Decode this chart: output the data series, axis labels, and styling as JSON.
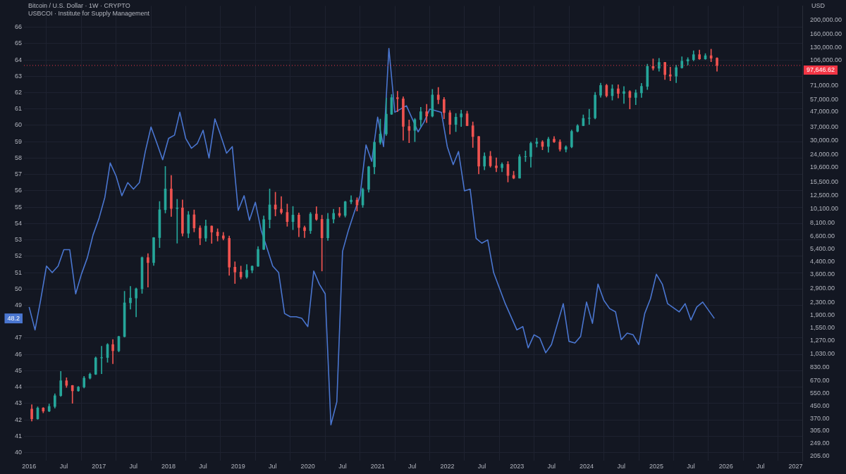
{
  "chart_data": {
    "type": "candlestick",
    "title": "Bitcoin / U.S. Dollar · 1W · CRYPTO",
    "subtitle": "USBCOI · Institute for Supply Management",
    "y2label": "USD",
    "log": "y2",
    "grid": true,
    "xlim": [
      "2015-12-05",
      "2027-02-05"
    ],
    "xticks": [
      {
        "value": "2016-01-01",
        "label": "2016"
      },
      {
        "value": "2016-07-01",
        "label": "Jul"
      },
      {
        "value": "2017-01-01",
        "label": "2017"
      },
      {
        "value": "2017-07-01",
        "label": "Jul"
      },
      {
        "value": "2018-01-01",
        "label": "2018"
      },
      {
        "value": "2018-07-01",
        "label": "Jul"
      },
      {
        "value": "2019-01-01",
        "label": "2019"
      },
      {
        "value": "2019-07-01",
        "label": "Jul"
      },
      {
        "value": "2020-01-01",
        "label": "2020"
      },
      {
        "value": "2020-07-01",
        "label": "Jul"
      },
      {
        "value": "2021-01-01",
        "label": "2021"
      },
      {
        "value": "2021-07-01",
        "label": "Jul"
      },
      {
        "value": "2022-01-01",
        "label": "2022"
      },
      {
        "value": "2022-07-01",
        "label": "Jul"
      },
      {
        "value": "2023-01-01",
        "label": "2023"
      },
      {
        "value": "2023-07-01",
        "label": "Jul"
      },
      {
        "value": "2024-01-01",
        "label": "2024"
      },
      {
        "value": "2024-07-01",
        "label": "Jul"
      },
      {
        "value": "2025-01-01",
        "label": "2025"
      },
      {
        "value": "2025-07-01",
        "label": "Jul"
      },
      {
        "value": "2026-01-01",
        "label": "2026"
      },
      {
        "value": "2026-07-01",
        "label": "Jul"
      },
      {
        "value": "2027-01-01",
        "label": "2027"
      }
    ],
    "ylim": [
      39.5,
      67.3
    ],
    "yticks": [
      40,
      41,
      42,
      43,
      44,
      45,
      46,
      47,
      49,
      50,
      51,
      52,
      53,
      54,
      55,
      56,
      57,
      58,
      59,
      60,
      61,
      62,
      63,
      64,
      65,
      66
    ],
    "y2lim": [
      190,
      250000
    ],
    "y2ticks": [
      {
        "value": 205,
        "label": "205.00"
      },
      {
        "value": 249,
        "label": "249.00"
      },
      {
        "value": 305,
        "label": "305.00"
      },
      {
        "value": 370,
        "label": "370.00"
      },
      {
        "value": 450,
        "label": "450.00"
      },
      {
        "value": 550,
        "label": "550.00"
      },
      {
        "value": 670,
        "label": "670.00"
      },
      {
        "value": 830,
        "label": "830.00"
      },
      {
        "value": 1030,
        "label": "1,030.00"
      },
      {
        "value": 1270,
        "label": "1,270.00"
      },
      {
        "value": 1550,
        "label": "1,550.00"
      },
      {
        "value": 1900,
        "label": "1,900.00"
      },
      {
        "value": 2300,
        "label": "2,300.00"
      },
      {
        "value": 2900,
        "label": "2,900.00"
      },
      {
        "value": 3600,
        "label": "3,600.00"
      },
      {
        "value": 4400,
        "label": "4,400.00"
      },
      {
        "value": 5400,
        "label": "5,400.00"
      },
      {
        "value": 6600,
        "label": "6,600.00"
      },
      {
        "value": 8100,
        "label": "8,100.00"
      },
      {
        "value": 10100,
        "label": "10,100.00"
      },
      {
        "value": 12500,
        "label": "12,500.00"
      },
      {
        "value": 15500,
        "label": "15,500.00"
      },
      {
        "value": 19600,
        "label": "19,600.00"
      },
      {
        "value": 24000,
        "label": "24,000.00"
      },
      {
        "value": 30000,
        "label": "30,000.00"
      },
      {
        "value": 37000,
        "label": "37,000.00"
      },
      {
        "value": 47000,
        "label": "47,000.00"
      },
      {
        "value": 57000,
        "label": "57,000.00"
      },
      {
        "value": 71000,
        "label": "71,000.00"
      },
      {
        "value": 106000,
        "label": "106,000.00"
      },
      {
        "value": 130000,
        "label": "130,000.00"
      },
      {
        "value": 160000,
        "label": "160,000.00"
      },
      {
        "value": 200000,
        "label": "200,000.00"
      }
    ],
    "ref_lines": [
      {
        "axis": "y2",
        "value": 97646.62,
        "label": "97,646.62",
        "color": "#f23645",
        "line_style": "dotted"
      }
    ],
    "annotations": [
      "48.2"
    ],
    "series": [
      {
        "type": "line",
        "color": "#4a76d0",
        "x": [
          "2016-01",
          "2016-02",
          "2016-03",
          "2016-04",
          "2016-05",
          "2016-06",
          "2016-07",
          "2016-08",
          "2016-09",
          "2016-10",
          "2016-11",
          "2016-12",
          "2017-01",
          "2017-02",
          "2017-03",
          "2017-04",
          "2017-05",
          "2017-06",
          "2017-07",
          "2017-08",
          "2017-09",
          "2017-10",
          "2017-11",
          "2017-12",
          "2018-01",
          "2018-02",
          "2018-03",
          "2018-04",
          "2018-05",
          "2018-06",
          "2018-07",
          "2018-08",
          "2018-09",
          "2018-10",
          "2018-11",
          "2018-12",
          "2019-01",
          "2019-02",
          "2019-03",
          "2019-04",
          "2019-05",
          "2019-06",
          "2019-07",
          "2019-08",
          "2019-09",
          "2019-10",
          "2019-11",
          "2019-12",
          "2020-01",
          "2020-02",
          "2020-03",
          "2020-04",
          "2020-05",
          "2020-06",
          "2020-07",
          "2020-08",
          "2020-09",
          "2020-10",
          "2020-11",
          "2020-12",
          "2021-01",
          "2021-02",
          "2021-03",
          "2021-04",
          "2021-06",
          "2021-08",
          "2021-09",
          "2021-10",
          "2021-12",
          "2022-01",
          "2022-02",
          "2022-03",
          "2022-04",
          "2022-05",
          "2022-06",
          "2022-07",
          "2022-08",
          "2022-09",
          "2022-11",
          "2023-01",
          "2023-02",
          "2023-03",
          "2023-04",
          "2023-05",
          "2023-06",
          "2023-07",
          "2023-09",
          "2023-10",
          "2023-11",
          "2023-12",
          "2024-01",
          "2024-02",
          "2024-03",
          "2024-04",
          "2024-05",
          "2024-06",
          "2024-07",
          "2024-08",
          "2024-09",
          "2024-10",
          "2024-11",
          "2024-12",
          "2025-01",
          "2025-02",
          "2025-03",
          "2025-05",
          "2025-06",
          "2025-07",
          "2025-08",
          "2025-09",
          "2025-11"
        ],
        "values": [
          48.9,
          47.5,
          49.3,
          51.4,
          51.0,
          51.4,
          52.4,
          52.4,
          49.7,
          50.9,
          51.9,
          53.3,
          54.3,
          55.6,
          57.7,
          56.9,
          55.7,
          56.5,
          56.1,
          56.5,
          58.4,
          59.9,
          58.9,
          57.9,
          59.2,
          59.4,
          60.8,
          59.2,
          58.6,
          58.9,
          59.7,
          58.0,
          60.4,
          59.4,
          58.3,
          58.7,
          54.8,
          55.7,
          54.2,
          55.3,
          53.6,
          52.5,
          51.4,
          51.0,
          48.5,
          48.3,
          48.3,
          48.2,
          47.7,
          51.1,
          50.3,
          49.7,
          41.7,
          43.1,
          52.3,
          53.6,
          54.7,
          55.7,
          58.8,
          57.8,
          60.5,
          58.7,
          64.7,
          60.8,
          61.2,
          59.6,
          60.2,
          61.0,
          60.8,
          58.7,
          57.6,
          58.4,
          56.0,
          56.1,
          53.1,
          52.8,
          53.0,
          51.0,
          49.1,
          47.5,
          47.7,
          46.4,
          47.2,
          47.0,
          46.1,
          46.6,
          49.1,
          46.8,
          46.7,
          47.1,
          49.2,
          47.9,
          50.3,
          49.3,
          48.8,
          48.6,
          46.9,
          47.3,
          47.2,
          46.6,
          48.5,
          49.4,
          50.9,
          50.3,
          49.1,
          48.6,
          49.1,
          48.1,
          48.9,
          49.2,
          48.2
        ]
      },
      {
        "axis": "y2",
        "x": [
          "2016-01-15",
          "2016-02-15",
          "2016-03-15",
          "2016-04-15",
          "2016-05-15",
          "2016-06-15",
          "2016-07-15",
          "2016-08-15",
          "2016-09-15",
          "2016-10-15",
          "2016-11-15",
          "2016-12-15",
          "2017-01-15",
          "2017-02-15",
          "2017-03-15",
          "2017-04-15",
          "2017-05-15",
          "2017-06-15",
          "2017-07-15",
          "2017-08-15",
          "2017-09-15",
          "2017-10-15",
          "2017-11-15",
          "2017-12-15",
          "2018-01-15",
          "2018-02-15",
          "2018-03-15",
          "2018-04-15",
          "2018-05-15",
          "2018-06-15",
          "2018-07-15",
          "2018-08-15",
          "2018-09-15",
          "2018-10-15",
          "2018-11-15",
          "2018-12-15",
          "2019-01-15",
          "2019-02-15",
          "2019-03-15",
          "2019-04-15",
          "2019-05-15",
          "2019-06-15",
          "2019-07-15",
          "2019-08-15",
          "2019-09-15",
          "2019-10-15",
          "2019-11-15",
          "2019-12-15",
          "2020-01-15",
          "2020-02-15",
          "2020-03-15",
          "2020-04-15",
          "2020-05-15",
          "2020-06-15",
          "2020-07-15",
          "2020-08-15",
          "2020-09-15",
          "2020-10-15",
          "2020-11-15",
          "2020-12-15",
          "2021-01-15",
          "2021-02-15",
          "2021-03-15",
          "2021-04-15",
          "2021-05-15",
          "2021-06-15",
          "2021-07-15",
          "2021-08-15",
          "2021-09-15",
          "2021-10-15",
          "2021-11-15",
          "2021-12-15",
          "2022-01-15",
          "2022-02-15",
          "2022-03-15",
          "2022-04-15",
          "2022-05-15",
          "2022-06-15",
          "2022-07-15",
          "2022-08-15",
          "2022-09-15",
          "2022-10-15",
          "2022-11-15",
          "2022-12-15",
          "2023-01-15",
          "2023-02-15",
          "2023-03-15",
          "2023-04-15",
          "2023-05-15",
          "2023-06-15",
          "2023-07-15",
          "2023-08-15",
          "2023-09-15",
          "2023-10-15",
          "2023-11-15",
          "2023-12-15",
          "2024-01-15",
          "2024-02-15",
          "2024-03-15",
          "2024-04-15",
          "2024-05-15",
          "2024-06-15",
          "2024-07-15",
          "2024-08-15",
          "2024-09-15",
          "2024-10-15",
          "2024-11-15",
          "2024-12-15",
          "2025-01-15",
          "2025-02-15",
          "2025-03-15",
          "2025-04-15",
          "2025-05-15",
          "2025-06-15",
          "2025-07-15",
          "2025-08-15",
          "2025-09-15",
          "2025-10-15",
          "2025-11-15"
        ],
        "ohlc": [
          [
            430,
            460,
            355,
            368
          ],
          [
            368,
            445,
            365,
            437
          ],
          [
            437,
            440,
            405,
            416
          ],
          [
            416,
            466,
            412,
            448
          ],
          [
            448,
            548,
            436,
            531
          ],
          [
            531,
            780,
            525,
            673
          ],
          [
            673,
            705,
            605,
            624
          ],
          [
            624,
            625,
            470,
            573
          ],
          [
            573,
            615,
            568,
            609
          ],
          [
            609,
            720,
            600,
            700
          ],
          [
            700,
            760,
            690,
            745
          ],
          [
            745,
            980,
            740,
            964
          ],
          [
            964,
            1160,
            750,
            970
          ],
          [
            970,
            1210,
            900,
            1190
          ],
          [
            1190,
            1290,
            880,
            1080
          ],
          [
            1080,
            1360,
            1060,
            1350
          ],
          [
            1350,
            2760,
            1340,
            2300
          ],
          [
            2300,
            2980,
            2080,
            2480
          ],
          [
            2480,
            2910,
            1840,
            2870
          ],
          [
            2870,
            4750,
            2670,
            4700
          ],
          [
            4700,
            5000,
            2950,
            4340
          ],
          [
            4340,
            6470,
            4150,
            6440
          ],
          [
            6440,
            11400,
            5500,
            10000
          ],
          [
            10000,
            19800,
            9500,
            13900
          ],
          [
            13900,
            17200,
            9000,
            10200
          ],
          [
            10200,
            11800,
            5900,
            10300
          ],
          [
            10300,
            11700,
            6600,
            6900
          ],
          [
            6900,
            9750,
            6430,
            9240
          ],
          [
            9240,
            9980,
            7050,
            7500
          ],
          [
            7500,
            7780,
            5750,
            6390
          ],
          [
            6390,
            8500,
            6070,
            7730
          ],
          [
            7730,
            7760,
            5880,
            7030
          ],
          [
            7030,
            7410,
            6100,
            6630
          ],
          [
            6630,
            7000,
            6200,
            6370
          ],
          [
            6370,
            6600,
            3550,
            4040
          ],
          [
            4040,
            4400,
            3120,
            3740
          ],
          [
            3740,
            4110,
            3350,
            3460
          ],
          [
            3460,
            4210,
            3390,
            3850
          ],
          [
            3850,
            4130,
            3690,
            4100
          ],
          [
            4100,
            5600,
            4080,
            5350
          ],
          [
            5350,
            9080,
            5330,
            8570
          ],
          [
            8570,
            13900,
            7500,
            10800
          ],
          [
            10800,
            13200,
            9070,
            10100
          ],
          [
            10100,
            12330,
            9350,
            9590
          ],
          [
            9590,
            10950,
            7700,
            8290
          ],
          [
            8290,
            10540,
            7300,
            9200
          ],
          [
            9200,
            9500,
            6520,
            7550
          ],
          [
            7550,
            7750,
            6430,
            7190
          ],
          [
            7190,
            9590,
            6870,
            9350
          ],
          [
            9350,
            10500,
            8450,
            8600
          ],
          [
            8600,
            9180,
            3800,
            6420
          ],
          [
            6420,
            9460,
            6150,
            8630
          ],
          [
            8630,
            10080,
            8110,
            9450
          ],
          [
            9450,
            10400,
            8900,
            9140
          ],
          [
            9140,
            11450,
            8900,
            11350
          ],
          [
            11350,
            12480,
            10990,
            11650
          ],
          [
            11650,
            12100,
            9800,
            10780
          ],
          [
            10780,
            14100,
            10370,
            13800
          ],
          [
            13800,
            19900,
            13200,
            19700
          ],
          [
            19700,
            29300,
            17600,
            29000
          ],
          [
            29000,
            41900,
            28100,
            33100
          ],
          [
            33100,
            58300,
            32300,
            45200
          ],
          [
            45200,
            61800,
            44900,
            58800
          ],
          [
            58800,
            64900,
            47000,
            57700
          ],
          [
            57700,
            59600,
            30000,
            37300
          ],
          [
            37300,
            41300,
            28800,
            35000
          ],
          [
            35000,
            42300,
            29300,
            41500
          ],
          [
            41500,
            50500,
            37300,
            47100
          ],
          [
            47100,
            52900,
            39600,
            43800
          ],
          [
            43800,
            67000,
            43300,
            61300
          ],
          [
            61300,
            69000,
            53300,
            57000
          ],
          [
            57000,
            59000,
            42000,
            46300
          ],
          [
            46300,
            48000,
            33000,
            38500
          ],
          [
            38500,
            45800,
            34300,
            43200
          ],
          [
            43200,
            48200,
            37200,
            45500
          ],
          [
            45500,
            47400,
            37600,
            37700
          ],
          [
            37700,
            40000,
            26700,
            31800
          ],
          [
            31800,
            31900,
            17600,
            19900
          ],
          [
            19900,
            24600,
            18800,
            23300
          ],
          [
            23300,
            25200,
            19600,
            20000
          ],
          [
            20000,
            22700,
            18200,
            19400
          ],
          [
            19400,
            21000,
            18200,
            20500
          ],
          [
            20500,
            21400,
            15500,
            17200
          ],
          [
            17200,
            18400,
            16300,
            16500
          ],
          [
            16500,
            23900,
            16500,
            23100
          ],
          [
            23100,
            25300,
            21400,
            23150
          ],
          [
            23150,
            29200,
            19600,
            28500
          ],
          [
            28500,
            31000,
            26900,
            29200
          ],
          [
            29200,
            29800,
            25800,
            27200
          ],
          [
            27200,
            31400,
            24800,
            30500
          ],
          [
            30500,
            31800,
            28900,
            29200
          ],
          [
            29200,
            30200,
            25200,
            26000
          ],
          [
            26000,
            27500,
            24900,
            27000
          ],
          [
            27000,
            35200,
            26600,
            34500
          ],
          [
            34500,
            38400,
            34100,
            37700
          ],
          [
            37700,
            44700,
            37600,
            42300
          ],
          [
            42300,
            48900,
            38500,
            42600
          ],
          [
            42600,
            63900,
            41900,
            61100
          ],
          [
            61100,
            73800,
            59000,
            71300
          ],
          [
            71300,
            72700,
            59200,
            60600
          ],
          [
            60600,
            71900,
            56500,
            67500
          ],
          [
            67500,
            72000,
            58400,
            62700
          ],
          [
            62700,
            70000,
            53500,
            64600
          ],
          [
            64600,
            65600,
            49100,
            58900
          ],
          [
            58900,
            66500,
            52600,
            63300
          ],
          [
            63300,
            73600,
            58900,
            70200
          ],
          [
            70200,
            99800,
            66800,
            96400
          ],
          [
            96400,
            108300,
            90500,
            93400
          ],
          [
            93400,
            109300,
            89200,
            102400
          ],
          [
            102400,
            102800,
            78200,
            84400
          ],
          [
            84400,
            95000,
            76600,
            82500
          ],
          [
            82500,
            97900,
            74400,
            94200
          ],
          [
            94200,
            111900,
            93400,
            104600
          ],
          [
            104600,
            110600,
            98200,
            107100
          ],
          [
            107100,
            123200,
            105100,
            115700
          ],
          [
            115700,
            124400,
            107300,
            108200
          ],
          [
            108200,
            117900,
            107300,
            114000
          ],
          [
            114000,
            126200,
            103500,
            109600
          ],
          [
            109600,
            110600,
            89000,
            97646.62
          ]
        ],
        "colors": [
          "#ef5350",
          "#26a69a",
          "#ef5350",
          "#26a69a",
          "#26a69a",
          "#26a69a",
          "#ef5350",
          "#ef5350",
          "#26a69a",
          "#26a69a",
          "#26a69a",
          "#26a69a",
          "#26a69a",
          "#26a69a",
          "#ef5350",
          "#26a69a",
          "#26a69a",
          "#26a69a",
          "#26a69a",
          "#26a69a",
          "#ef5350",
          "#26a69a",
          "#26a69a",
          "#26a69a",
          "#ef5350",
          "#26a69a",
          "#ef5350",
          "#26a69a",
          "#ef5350",
          "#ef5350",
          "#26a69a",
          "#ef5350",
          "#ef5350",
          "#ef5350",
          "#ef5350",
          "#ef5350",
          "#ef5350",
          "#26a69a",
          "#26a69a",
          "#26a69a",
          "#26a69a",
          "#26a69a",
          "#ef5350",
          "#ef5350",
          "#ef5350",
          "#26a69a",
          "#ef5350",
          "#ef5350",
          "#26a69a",
          "#ef5350",
          "#ef5350",
          "#26a69a",
          "#26a69a",
          "#ef5350",
          "#26a69a",
          "#26a69a",
          "#ef5350",
          "#26a69a",
          "#26a69a",
          "#26a69a",
          "#26a69a",
          "#26a69a",
          "#26a69a",
          "#ef5350",
          "#ef5350",
          "#ef5350",
          "#26a69a",
          "#26a69a",
          "#ef5350",
          "#26a69a",
          "#ef5350",
          "#ef5350",
          "#ef5350",
          "#26a69a",
          "#26a69a",
          "#ef5350",
          "#ef5350",
          "#ef5350",
          "#26a69a",
          "#ef5350",
          "#ef5350",
          "#26a69a",
          "#ef5350",
          "#ef5350",
          "#26a69a",
          "#26a69a",
          "#26a69a",
          "#26a69a",
          "#ef5350",
          "#26a69a",
          "#ef5350",
          "#ef5350",
          "#26a69a",
          "#26a69a",
          "#26a69a",
          "#26a69a",
          "#26a69a",
          "#26a69a",
          "#26a69a",
          "#ef5350",
          "#26a69a",
          "#ef5350",
          "#26a69a",
          "#ef5350",
          "#26a69a",
          "#26a69a",
          "#26a69a",
          "#ef5350",
          "#26a69a",
          "#ef5350",
          "#ef5350",
          "#26a69a",
          "#26a69a",
          "#26a69a",
          "#26a69a",
          "#ef5350",
          "#26a69a",
          "#ef5350",
          "#ef5350"
        ]
      }
    ]
  }
}
